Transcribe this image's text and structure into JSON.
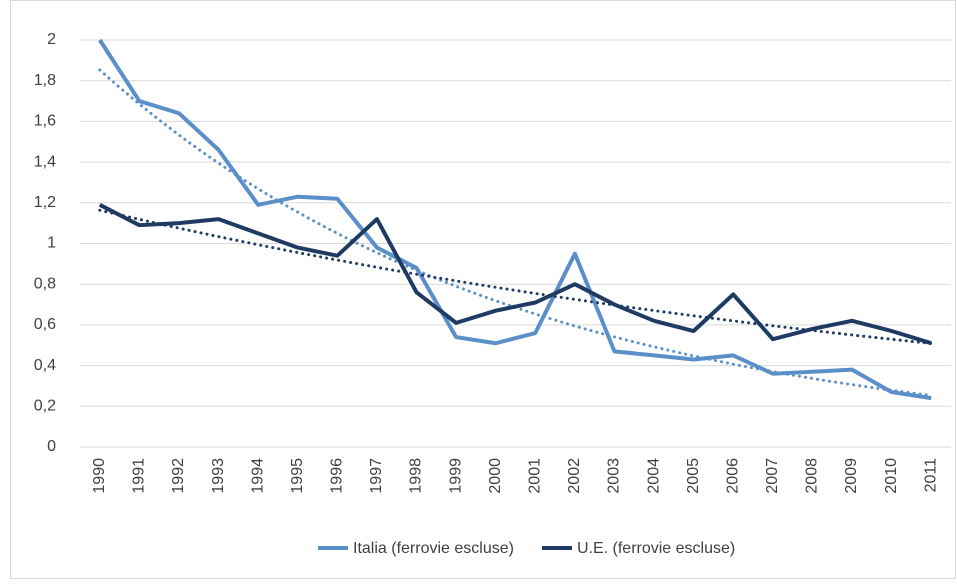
{
  "chart_data": {
    "type": "line",
    "categories": [
      "1990",
      "1991",
      "1992",
      "1993",
      "1994",
      "1995",
      "1996",
      "1997",
      "1998",
      "1999",
      "2000",
      "2001",
      "2002",
      "2003",
      "2004",
      "2005",
      "2006",
      "2007",
      "2008",
      "2009",
      "2010",
      "2011"
    ],
    "series": [
      {
        "name": "Italia (ferrovie escluse)",
        "color": "#5b8fc9",
        "values": [
          2.0,
          1.7,
          1.64,
          1.46,
          1.19,
          1.23,
          1.22,
          0.98,
          0.88,
          0.54,
          0.51,
          0.56,
          0.95,
          0.47,
          0.45,
          0.43,
          0.45,
          0.36,
          0.37,
          0.38,
          0.27,
          0.24
        ]
      },
      {
        "name": "U.E. (ferrovie escluse)",
        "color": "#1f3b63",
        "values": [
          1.19,
          1.09,
          1.1,
          1.12,
          1.05,
          0.98,
          0.94,
          1.12,
          0.76,
          0.61,
          0.67,
          0.71,
          0.8,
          0.7,
          0.62,
          0.57,
          0.75,
          0.53,
          0.58,
          0.62,
          0.57,
          0.51
        ]
      }
    ],
    "ylim": [
      0,
      2
    ],
    "yticks": [
      0,
      {
        "value": 0.2,
        "label": "0,2"
      },
      {
        "value": 0.4,
        "label": "0,4"
      },
      {
        "value": 0.6,
        "label": "0,6"
      },
      {
        "value": 0.8,
        "label": "0,8"
      },
      1,
      {
        "value": 1.2,
        "label": "1,2"
      },
      {
        "value": 1.4,
        "label": "1,4"
      },
      {
        "value": 1.6,
        "label": "1,6"
      },
      {
        "value": 1.8,
        "label": "1,8"
      },
      2
    ],
    "grid": true,
    "trendline": "exponential",
    "legend": "bottom"
  }
}
